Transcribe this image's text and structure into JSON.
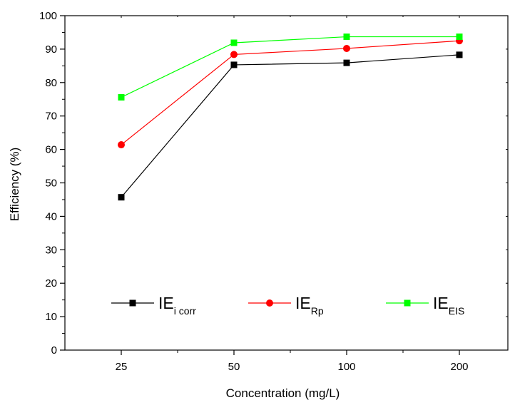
{
  "chart_data": {
    "type": "line",
    "xlabel": "Concentration (mg/L)",
    "ylabel": "Efficiency (%)",
    "categories": [
      "25",
      "50",
      "100",
      "200"
    ],
    "ylim": [
      0,
      100
    ],
    "yticks": [
      "0",
      "10",
      "20",
      "30",
      "40",
      "50",
      "60",
      "70",
      "80",
      "90",
      "100"
    ],
    "grid": false,
    "legend_position": "bottom",
    "series": [
      {
        "name": "IE",
        "name_sub": "i corr",
        "color": "#000000",
        "marker": "square",
        "values": [
          45.7,
          85.3,
          85.9,
          88.3
        ]
      },
      {
        "name": "IE",
        "name_sub": "Rp",
        "color": "#ff0000",
        "marker": "circle",
        "values": [
          61.4,
          88.4,
          90.2,
          92.5
        ]
      },
      {
        "name": "IE",
        "name_sub": "EIS",
        "color": "#00ff00",
        "marker": "square",
        "values": [
          75.6,
          91.9,
          93.7,
          93.7
        ]
      }
    ]
  }
}
